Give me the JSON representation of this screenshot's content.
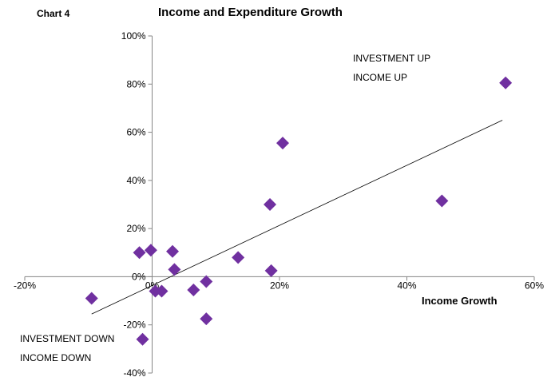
{
  "header": {
    "chart_label": "Chart 4",
    "title": "Income and Expenditure Growth"
  },
  "quadrant_labels": {
    "upper_right": [
      "INVESTMENT UP",
      "INCOME UP"
    ],
    "lower_left": [
      "INVESTMENT DOWN",
      "INCOME DOWN"
    ]
  },
  "chart_data": {
    "type": "scatter",
    "title": "Income and Expenditure Growth",
    "xlabel": "Income Growth",
    "ylabel": "",
    "xlim": [
      -20,
      60
    ],
    "ylim": [
      -40,
      100
    ],
    "x_ticks": [
      -20,
      0,
      20,
      40,
      60
    ],
    "x_tick_labels": [
      "-20%",
      "0%",
      "20%",
      "40%",
      "60%"
    ],
    "y_ticks": [
      -40,
      -20,
      0,
      20,
      40,
      60,
      80,
      100
    ],
    "y_tick_labels": [
      "-40%",
      "-20%",
      "0%",
      "20%",
      "40%",
      "60%",
      "80%",
      "100%"
    ],
    "grid": false,
    "marker_color": "#7030a0",
    "trendline_color": "#000000",
    "series": [
      {
        "x": [
          -9.5,
          -2.0,
          -1.5,
          -0.2,
          0.5,
          1.5,
          3.2,
          3.5,
          6.5,
          8.5,
          8.5,
          13.5,
          18.5,
          18.7,
          20.5,
          45.5,
          55.5
        ],
        "y": [
          -9,
          10,
          -26,
          11,
          -6,
          -6,
          10.5,
          3,
          -5.5,
          -2,
          -17.5,
          8,
          30,
          2.5,
          55.5,
          31.5,
          80.5
        ]
      }
    ],
    "trendline": {
      "x": [
        -9.5,
        55.0
      ],
      "y": [
        -15.5,
        65.0
      ]
    }
  }
}
